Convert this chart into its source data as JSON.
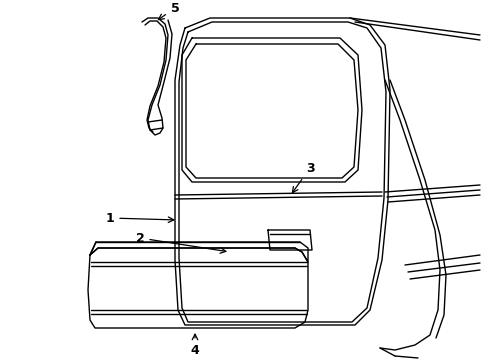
{
  "bg_color": "#ffffff",
  "line_color": "#000000",
  "lw": 1.0,
  "figsize": [
    4.9,
    3.6
  ],
  "dpi": 100,
  "xlim": [
    0,
    490
  ],
  "ylim": [
    0,
    360
  ]
}
